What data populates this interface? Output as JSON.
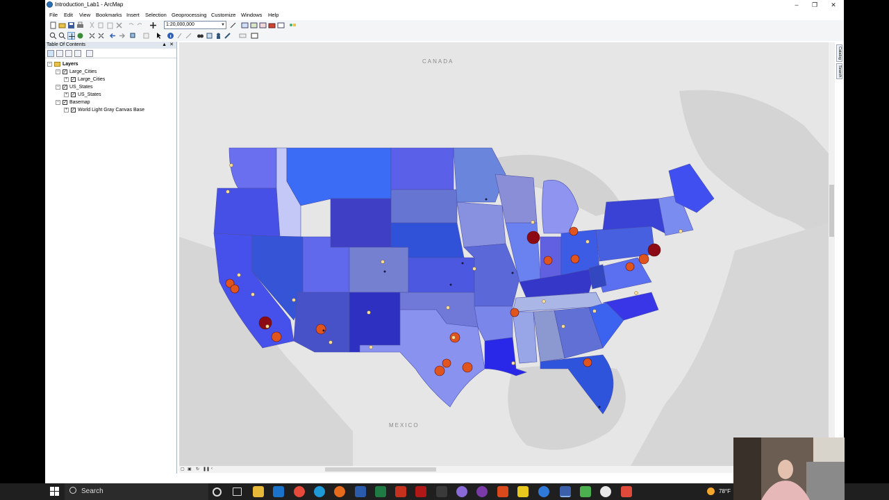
{
  "window": {
    "title": "Introduction_Lab1 - ArcMap"
  },
  "menu": [
    "File",
    "Edit",
    "View",
    "Bookmarks",
    "Insert",
    "Selection",
    "Geoprocessing",
    "Customize",
    "Windows",
    "Help"
  ],
  "toolbar": {
    "scale_value": "1:20,000,000"
  },
  "toc": {
    "title": "Table Of Contents",
    "root": "Layers",
    "layers": [
      {
        "name": "Large_Cities",
        "child": "Large_Cities"
      },
      {
        "name": "US_States",
        "child": "US_States"
      },
      {
        "name": "Basemap",
        "child": "World Light Gray Canvas Base"
      }
    ]
  },
  "map": {
    "labels": {
      "canada": "CANADA",
      "mexico": "MEXICO"
    }
  },
  "side_tabs": [
    "Catalog",
    "Search"
  ],
  "taskbar": {
    "search_placeholder": "Search",
    "temperature": "78°F"
  },
  "colors": {
    "state_blue": "#4a5bdc",
    "city_large": "#8b0a14",
    "city_mid": "#e0551e",
    "city_small": "#f4dd9a"
  }
}
